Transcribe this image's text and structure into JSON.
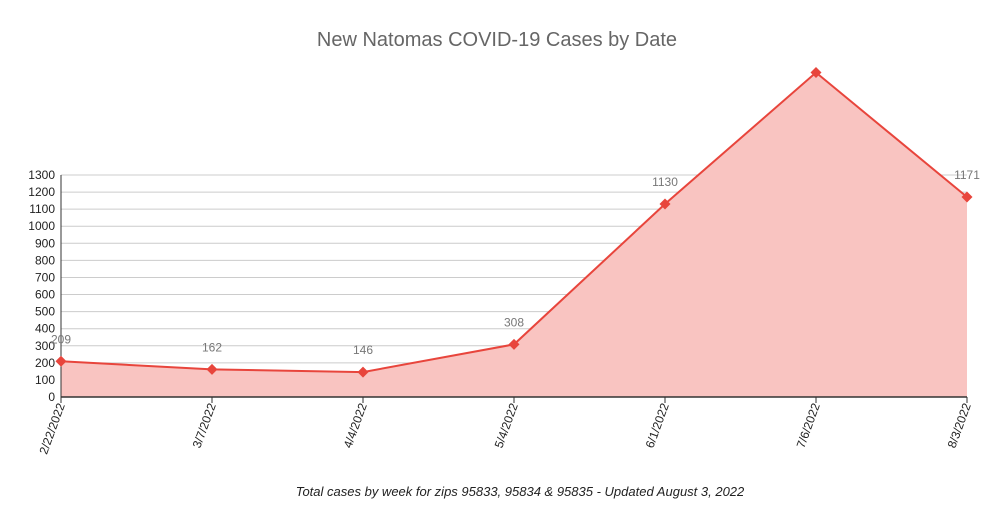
{
  "chart_data": {
    "type": "area",
    "title": "New Natomas COVID-19 Cases by Date",
    "caption": "Total cases by week for zips 95833, 95834 & 95835 - Updated August 3, 2022",
    "xlabel": "",
    "ylabel": "",
    "categories": [
      "2/22/2022",
      "3/7/2022",
      "4/4/2022",
      "5/4/2022",
      "6/1/2022",
      "7/6/2022",
      "8/3/2022"
    ],
    "values": [
      209,
      162,
      146,
      308,
      1130,
      1900,
      1171
    ],
    "data_labels": [
      "209",
      "162",
      "146",
      "308",
      "1130",
      "",
      "1171"
    ],
    "yticks": [
      0,
      100,
      200,
      300,
      400,
      500,
      600,
      700,
      800,
      900,
      1000,
      1100,
      1200,
      1300
    ],
    "ylim": [
      0,
      1300
    ],
    "grid": true,
    "legend": "none",
    "colors": {
      "line": "#e8453c",
      "fill": "#f9c4c1",
      "grid": "#cccccc",
      "axis": "#333333"
    }
  }
}
